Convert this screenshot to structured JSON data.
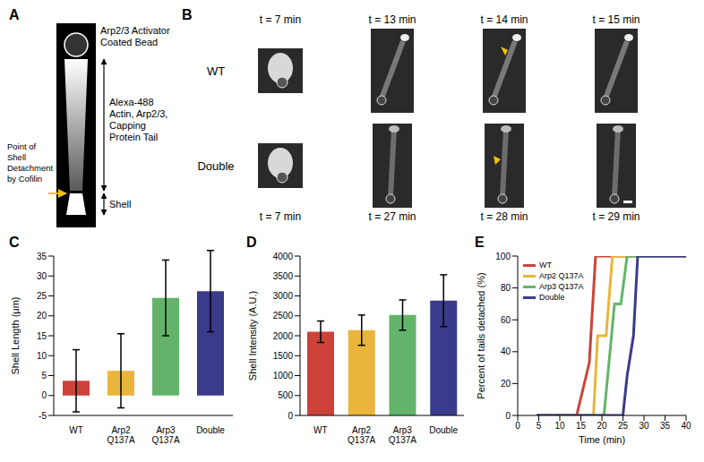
{
  "diagram": {
    "panel": "A",
    "labels": {
      "bead": "Arp2/3 Activator Coated Bead",
      "tail": "Alexa-488 Actin, Arp2/3, Capping Protein Tail",
      "detachment": "Point of Shell Detachment by Cofilin",
      "shell": "Shell"
    }
  },
  "images": {
    "panel": "B",
    "rows": [
      {
        "label": "WT",
        "times": [
          "t = 7 min",
          "t = 13 min",
          "t = 14 min",
          "t = 15 min"
        ]
      },
      {
        "label": "Double",
        "times": [
          "t = 7 min",
          "t = 27 min",
          "t = 28 min",
          "t = 29 min"
        ]
      }
    ]
  },
  "chart_data": [
    {
      "panel": "C",
      "type": "bar",
      "categories": [
        "WT",
        "Arp2 Q137A",
        "Arp3 Q137A",
        "Double"
      ],
      "values": [
        3.7,
        6.2,
        24.5,
        26.2
      ],
      "errors": [
        7.8,
        9.3,
        9.5,
        10.2
      ],
      "colors": [
        "#cd4339",
        "#e9b53b",
        "#63b46a",
        "#3b3b8b"
      ],
      "y_label": "Shell Length (μm)",
      "ylim": [
        -5,
        35
      ],
      "yticks": [
        -5,
        0,
        5,
        10,
        15,
        20,
        25,
        30,
        35
      ]
    },
    {
      "panel": "D",
      "type": "bar",
      "categories": [
        "WT",
        "Arp2 Q137A",
        "Arp3 Q137A",
        "Double"
      ],
      "values": [
        2100,
        2140,
        2520,
        2880
      ],
      "errors": [
        270,
        380,
        380,
        650
      ],
      "colors": [
        "#cd4339",
        "#e9b53b",
        "#63b46a",
        "#3b3b8b"
      ],
      "y_label": "Shell Intensity (A.U.)",
      "ylim": [
        0,
        4000
      ],
      "yticks": [
        0,
        500,
        1000,
        1500,
        2000,
        2500,
        3000,
        3500,
        4000
      ]
    },
    {
      "panel": "E",
      "type": "line",
      "x_label": "Time (min)",
      "y_label": "Percent of tails detached (%)",
      "xlim": [
        0,
        40
      ],
      "xticks": [
        0,
        5,
        10,
        15,
        20,
        25,
        30,
        35,
        40
      ],
      "ylim": [
        0,
        100
      ],
      "yticks": [
        0,
        20,
        40,
        60,
        80,
        100
      ],
      "legend": "upper left",
      "series": [
        {
          "name": "WT",
          "color": "#cd4339",
          "x": [
            4.5,
            14,
            17,
            18.5,
            40
          ],
          "values": [
            0,
            0,
            33,
            100,
            100
          ]
        },
        {
          "name": "Arp2 Q137A",
          "color": "#e9b53b",
          "x": [
            4.5,
            18,
            19,
            21,
            22.5,
            40
          ],
          "values": [
            0,
            0,
            50,
            50,
            100,
            100
          ]
        },
        {
          "name": "Arp3 Q137A",
          "color": "#63b46a",
          "x": [
            4.5,
            20.5,
            23,
            24.5,
            26,
            40
          ],
          "values": [
            0,
            0,
            70,
            70,
            100,
            100
          ]
        },
        {
          "name": "Double",
          "color": "#3b3b8b",
          "x": [
            4.5,
            25,
            26,
            27.5,
            28.5,
            40
          ],
          "values": [
            0,
            0,
            25,
            50,
            100,
            100
          ]
        }
      ]
    }
  ]
}
